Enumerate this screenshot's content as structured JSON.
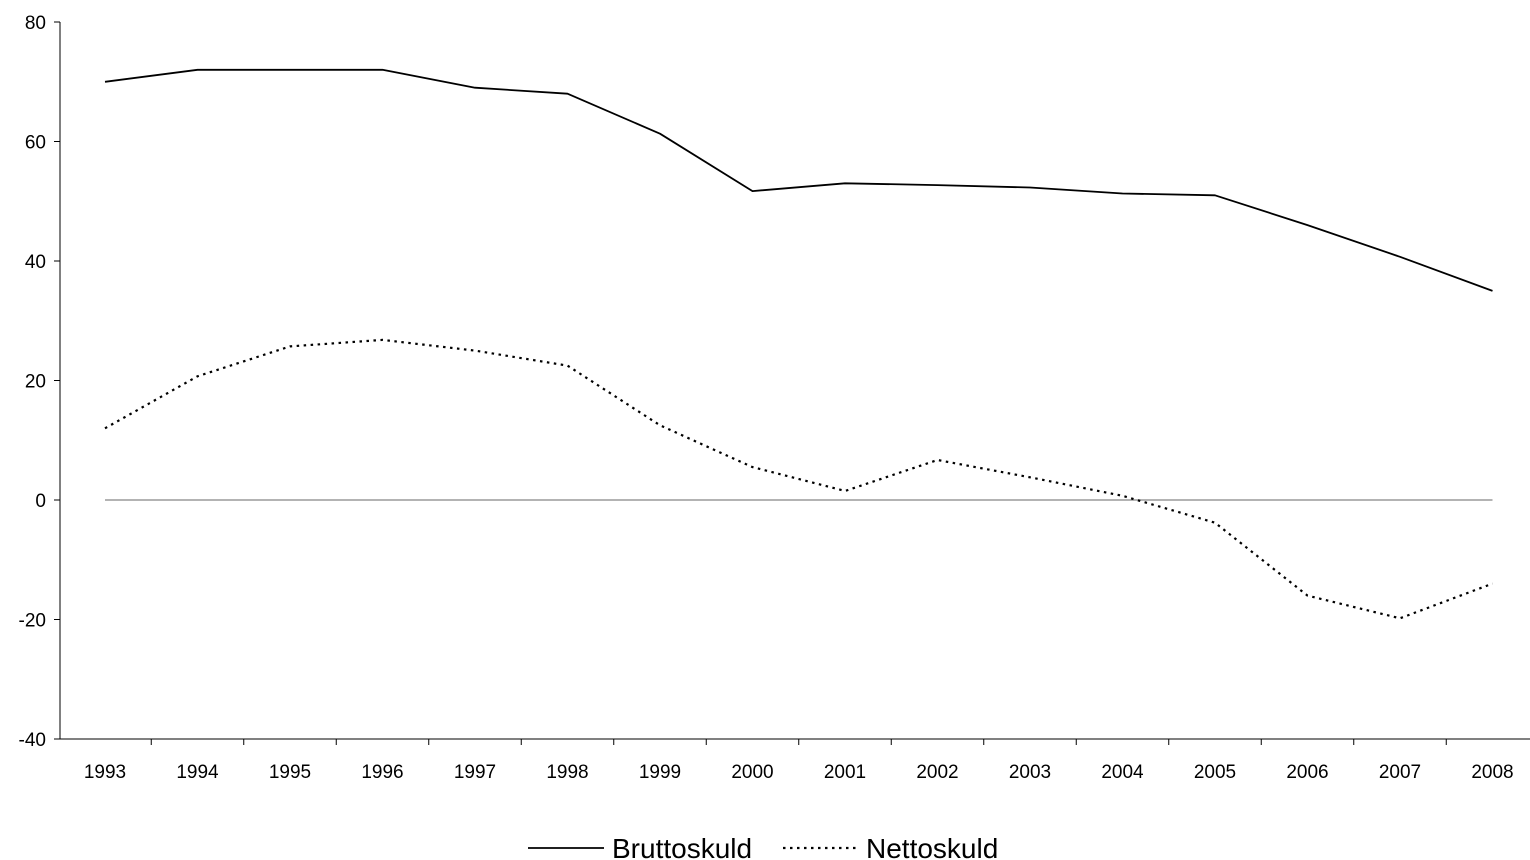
{
  "chart_data": {
    "type": "line",
    "title": "",
    "xlabel": "",
    "ylabel": "",
    "x": [
      "1993",
      "1994",
      "1995",
      "1996",
      "1997",
      "1998",
      "1999",
      "2000",
      "2001",
      "2002",
      "2003",
      "2004",
      "2005",
      "2006",
      "2007",
      "2008"
    ],
    "ylim": [
      -40,
      80
    ],
    "yticks": [
      -40,
      -20,
      0,
      20,
      40,
      60,
      80
    ],
    "grid": false,
    "zero_line": true,
    "legend_position": "bottom",
    "series": [
      {
        "name": "Bruttoskuld",
        "style": "solid",
        "color": "#000000",
        "values": [
          70.0,
          72.0,
          72.0,
          72.0,
          69.0,
          68.0,
          61.3,
          51.7,
          53.0,
          52.7,
          52.3,
          51.3,
          51.0,
          46.0,
          40.7,
          35.0
        ]
      },
      {
        "name": "Nettoskuld",
        "style": "dotted",
        "color": "#000000",
        "values": [
          12.0,
          20.7,
          25.7,
          26.8,
          25.0,
          22.5,
          12.5,
          5.5,
          1.5,
          6.7,
          3.8,
          0.7,
          -3.8,
          -16.0,
          -19.8,
          -14.0
        ]
      }
    ]
  }
}
